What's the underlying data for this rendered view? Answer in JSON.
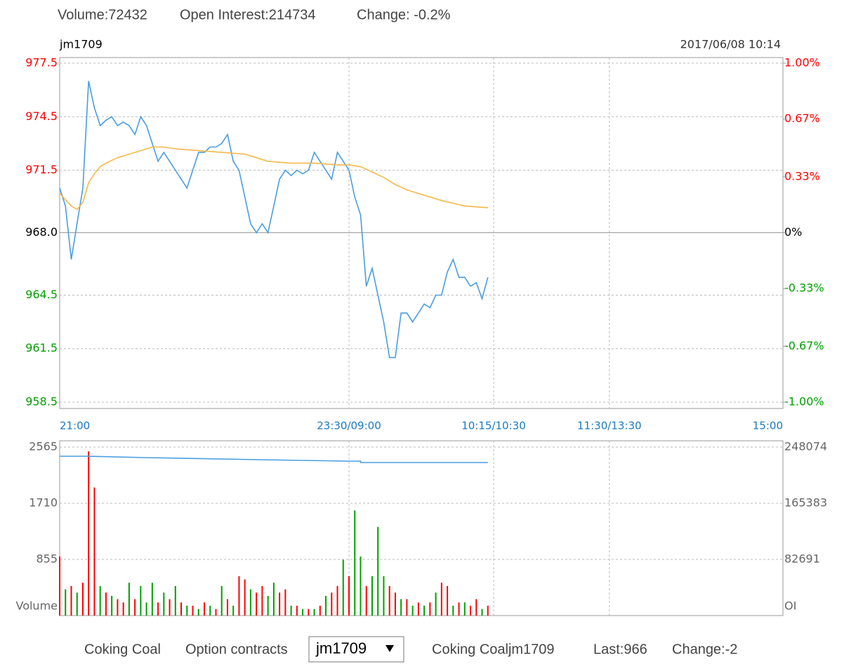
{
  "header": {
    "volume": "Volume:72432",
    "open_interest": "Open Interest:214734",
    "change": "Change: -0.2%"
  },
  "chart_data": [
    {
      "type": "line",
      "title": "jm1709",
      "subtitle": "2017/06/08 10:14",
      "xlim": [
        0,
        375
      ],
      "xticks": [
        {
          "value": 0,
          "label": "21:00"
        },
        {
          "value": 150,
          "label": "23:30/09:00"
        },
        {
          "value": 225,
          "label": "10:15/10:30"
        },
        {
          "value": 285,
          "label": "11:30/13:30"
        },
        {
          "value": 375,
          "label": "15:00"
        }
      ],
      "ylim": [
        958.5,
        977.5
      ],
      "yticks": [
        958.5,
        961.5,
        964.5,
        {
          "value": 968,
          "label": "968.0"
        },
        971.5,
        974.5,
        977.5
      ],
      "y2lim": [
        -1,
        1
      ],
      "y2ticks": [
        {
          "value": -1,
          "label": "-1.00%"
        },
        {
          "value": -0.67,
          "label": "-0.67%"
        },
        {
          "value": -0.33,
          "label": "-0.33%"
        },
        {
          "value": 0,
          "label": "0%"
        },
        {
          "value": 0.33,
          "label": "0.33%"
        },
        {
          "value": 0.67,
          "label": "0.67%"
        },
        {
          "value": 1,
          "label": "1.00%"
        }
      ],
      "grid": true,
      "up_color": "#ff0000",
      "down_color": "#00a000",
      "flat_color": "#000000",
      "xtick_color": "#1a7ac0",
      "series": [
        {
          "color": "#4a9de0",
          "x": [
            0,
            3,
            6,
            9,
            12,
            15,
            18,
            21,
            24,
            27,
            30,
            33,
            36,
            39,
            42,
            45,
            48,
            51,
            54,
            57,
            60,
            63,
            66,
            69,
            72,
            75,
            78,
            81,
            84,
            87,
            90,
            93,
            96,
            99,
            102,
            105,
            108,
            111,
            114,
            117,
            120,
            123,
            126,
            129,
            132,
            135,
            138,
            141,
            144,
            147,
            150,
            153,
            156,
            159,
            162,
            165,
            168,
            171,
            174,
            177,
            180,
            183,
            186,
            189,
            192,
            195,
            198,
            201,
            204,
            207,
            210,
            213,
            216,
            219,
            222
          ],
          "values": [
            970.5,
            969.5,
            966.5,
            968.5,
            970.5,
            976.5,
            975,
            974,
            974.3,
            974.5,
            974,
            974.2,
            974,
            973.5,
            974.5,
            974,
            973,
            972,
            972.5,
            972,
            971.5,
            971,
            970.5,
            971.5,
            972.5,
            972.5,
            972.8,
            972.8,
            973,
            973.5,
            972,
            971.5,
            970,
            968.5,
            968,
            968.5,
            968,
            969.5,
            971,
            971.5,
            971.2,
            971.5,
            971.3,
            971.5,
            972.5,
            972,
            971.5,
            971,
            972.5,
            972,
            971.5,
            970,
            969,
            965,
            966,
            964.5,
            963,
            961,
            961,
            963.5,
            963.5,
            963,
            963.5,
            964,
            963.8,
            964.5,
            964.5,
            965.8,
            966.5,
            965.5,
            965.5,
            965,
            965.2,
            964.3,
            965.5
          ]
        },
        {
          "color": "#f5b84a",
          "x": [
            0,
            6,
            9,
            12,
            15,
            18,
            21,
            24,
            30,
            36,
            42,
            48,
            54,
            60,
            72,
            84,
            96,
            108,
            120,
            132,
            144,
            150,
            156,
            162,
            168,
            174,
            180,
            186,
            198,
            210,
            222
          ],
          "values": [
            970.2,
            969.5,
            969.3,
            969.7,
            970.8,
            971.3,
            971.7,
            971.9,
            972.2,
            972.4,
            972.6,
            972.8,
            972.8,
            972.7,
            972.6,
            972.5,
            972.4,
            972,
            971.9,
            971.9,
            971.8,
            971.8,
            971.7,
            971.4,
            971.1,
            970.7,
            970.4,
            970.2,
            969.8,
            969.5,
            969.4
          ]
        }
      ]
    },
    {
      "type": "bar",
      "ylabel": "Volume",
      "y2label": "OI",
      "xlim": [
        0,
        375
      ],
      "ylim": [
        0,
        2565
      ],
      "yticks": [
        855,
        1710,
        2565
      ],
      "y2lim": [
        0,
        248074
      ],
      "y2ticks": [
        82691,
        165383,
        248074
      ],
      "grid": true,
      "series": [
        {
          "x": [
            0,
            3,
            6,
            9,
            12,
            15,
            18,
            21,
            24,
            27,
            30,
            33,
            36,
            39,
            42,
            45,
            48,
            51,
            54,
            57,
            60,
            63,
            66,
            69,
            72,
            75,
            78,
            81,
            84,
            87,
            90,
            93,
            96,
            99,
            102,
            105,
            108,
            111,
            114,
            117,
            120,
            123,
            126,
            129,
            132,
            135,
            138,
            141,
            144,
            147,
            150,
            153,
            156,
            159,
            162,
            165,
            168,
            171,
            174,
            177,
            180,
            183,
            186,
            189,
            192,
            195,
            198,
            201,
            204,
            207,
            210,
            213,
            216,
            219,
            222
          ],
          "values": [
            900,
            400,
            450,
            350,
            500,
            2500,
            1950,
            450,
            350,
            300,
            250,
            200,
            500,
            250,
            450,
            200,
            500,
            200,
            350,
            250,
            450,
            200,
            150,
            150,
            100,
            200,
            150,
            100,
            450,
            250,
            150,
            600,
            550,
            400,
            350,
            450,
            300,
            500,
            350,
            400,
            150,
            150,
            100,
            100,
            100,
            150,
            300,
            350,
            450,
            850,
            600,
            1600,
            900,
            450,
            600,
            1350,
            600,
            450,
            350,
            250,
            250,
            150,
            200,
            150,
            200,
            350,
            500,
            450,
            150,
            200,
            200,
            150,
            250,
            100,
            150
          ],
          "colors": [
            "#ff0000",
            "#00a000",
            "#ff0000",
            "#00a000",
            "#ff0000",
            "#ff0000",
            "#ff0000",
            "#00a000",
            "#ff0000",
            "#00a000",
            "#ff0000",
            "#ff0000",
            "#00a000",
            "#ff0000",
            "#00a000",
            "#00a000",
            "#00a000",
            "#ff0000",
            "#00a000",
            "#ff0000",
            "#00a000",
            "#ff0000",
            "#00a000",
            "#ff0000",
            "#00a000",
            "#ff0000",
            "#00a000",
            "#ff0000",
            "#00a000",
            "#ff0000",
            "#00a000",
            "#ff0000",
            "#ff0000",
            "#00a000",
            "#ff0000",
            "#ff0000",
            "#00a000",
            "#00a000",
            "#ff0000",
            "#ff0000",
            "#00a000",
            "#ff0000",
            "#00a000",
            "#ff0000",
            "#00a000",
            "#ff0000",
            "#00a000",
            "#ff0000",
            "#ff0000",
            "#00a000",
            "#ff0000",
            "#00a000",
            "#00a000",
            "#ff0000",
            "#00a000",
            "#00a000",
            "#00a000",
            "#ff0000",
            "#ff0000",
            "#00a000",
            "#ff0000",
            "#00a000",
            "#ff0000",
            "#00a000",
            "#ff0000",
            "#00a000",
            "#ff0000",
            "#ff0000",
            "#00a000",
            "#ff0000",
            "#00a000",
            "#ff0000",
            "#ff0000",
            "#00a000",
            "#ff0000"
          ]
        },
        {
          "type": "line",
          "axis": "y2",
          "color": "#4a9de0",
          "x": [
            0,
            15,
            45,
            45,
            105,
            105,
            150,
            156,
            156,
            222
          ],
          "values": [
            234600,
            234600,
            232600,
            232600,
            229500,
            229500,
            227400,
            227400,
            225300,
            225300
          ]
        }
      ]
    }
  ],
  "footer": {
    "product": "Coking Coal",
    "option_label": "Option contracts",
    "selected": "jm1709",
    "contract": "Coking Coaljm1709",
    "last": "Last:966",
    "change": "Change:-2"
  }
}
